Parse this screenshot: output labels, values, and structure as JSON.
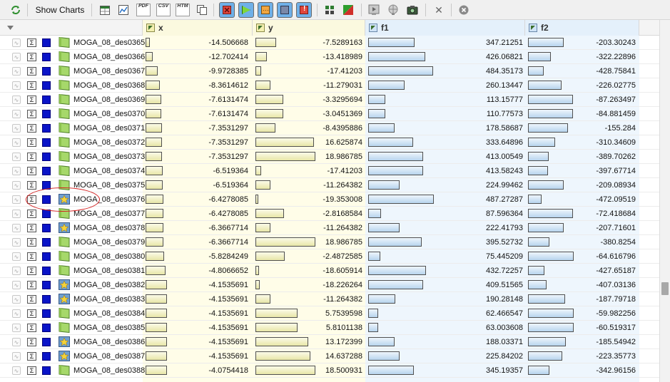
{
  "toolbar": {
    "show_charts_label": "Show Charts",
    "pdf_label": "PDF",
    "csv_label": "CSV",
    "htm_label": "HTM",
    "close_glyph": "✕"
  },
  "columns": {
    "x": "x",
    "y": "y",
    "f1": "f1",
    "f2": "f2"
  },
  "rows": [
    {
      "name": "MOGA_08_des0365",
      "x": "-14.506668",
      "xf": 0.12,
      "y": "-7.5289163",
      "yf": 0.35,
      "f1": "347.21251",
      "f1f": 0.71,
      "f2": "-203.30243",
      "f2f": 0.78
    },
    {
      "name": "MOGA_08_des0366",
      "x": "-12.702414",
      "xf": 0.2,
      "y": "-13.418989",
      "yf": 0.19,
      "f1": "426.06821",
      "f1f": 0.87,
      "f2": "-322.22896",
      "f2f": 0.5
    },
    {
      "name": "MOGA_08_des0367",
      "x": "-9.9728385",
      "xf": 0.32,
      "y": "-17.41203",
      "yf": 0.09,
      "f1": "484.35173",
      "f1f": 0.99,
      "f2": "-428.75841",
      "f2f": 0.35
    },
    {
      "name": "MOGA_08_des0368",
      "x": "-8.3614612",
      "xf": 0.39,
      "y": "-11.279031",
      "yf": 0.25,
      "f1": "260.13447",
      "f1f": 0.55,
      "f2": "-226.02775",
      "f2f": 0.74
    },
    {
      "name": "MOGA_08_des0369",
      "x": "-7.6131474",
      "xf": 0.42,
      "y": "-3.3295694",
      "yf": 0.47,
      "f1": "113.15777",
      "f1f": 0.26,
      "f2": "-87.263497",
      "f2f": 0.98
    },
    {
      "name": "MOGA_08_des0370",
      "x": "-7.6131474",
      "xf": 0.42,
      "y": "-3.0451369",
      "yf": 0.47,
      "f1": "110.77573",
      "f1f": 0.26,
      "f2": "-84.881459",
      "f2f": 0.98
    },
    {
      "name": "MOGA_08_des0371",
      "x": "-7.3531297",
      "xf": 0.44,
      "y": "-8.4395886",
      "yf": 0.33,
      "f1": "178.58687",
      "f1f": 0.4,
      "f2": "-155.284",
      "f2f": 0.88
    },
    {
      "name": "MOGA_08_des0372",
      "x": "-7.3531297",
      "xf": 0.44,
      "y": "16.625874",
      "yf": 0.98,
      "f1": "333.64896",
      "f1f": 0.69,
      "f2": "-310.34609",
      "f2f": 0.6
    },
    {
      "name": "MOGA_08_des0373",
      "x": "-7.3531297",
      "xf": 0.44,
      "y": "18.986785",
      "yf": 1.0,
      "f1": "413.00549",
      "f1f": 0.84,
      "f2": "-389.70262",
      "f2f": 0.45
    },
    {
      "name": "MOGA_08_des0374",
      "x": "-6.519364",
      "xf": 0.47,
      "y": "-17.41203",
      "yf": 0.09,
      "f1": "413.58243",
      "f1f": 0.84,
      "f2": "-397.67714",
      "f2f": 0.44
    },
    {
      "name": "MOGA_08_des0375",
      "x": "-6.519364",
      "xf": 0.47,
      "y": "-11.264382",
      "yf": 0.25,
      "f1": "224.99462",
      "f1f": 0.48,
      "f2": "-209.08934",
      "f2f": 0.78
    },
    {
      "name": "MOGA_08_des0376",
      "x": "-6.4278085",
      "xf": 0.48,
      "y": "-19.353008",
      "yf": 0.04,
      "f1": "487.27287",
      "f1f": 1.0,
      "f2": "-472.09519",
      "f2f": 0.29
    },
    {
      "name": "MOGA_08_des0377",
      "x": "-6.4278085",
      "xf": 0.48,
      "y": "-2.8168584",
      "yf": 0.48,
      "f1": "87.596364",
      "f1f": 0.2,
      "f2": "-72.418684",
      "f2f": 0.99
    },
    {
      "name": "MOGA_08_des0378",
      "x": "-6.3667714",
      "xf": 0.48,
      "y": "-11.264382",
      "yf": 0.25,
      "f1": "222.41793",
      "f1f": 0.48,
      "f2": "-207.71601",
      "f2f": 0.78
    },
    {
      "name": "MOGA_08_des0379",
      "x": "-6.3667714",
      "xf": 0.48,
      "y": "18.986785",
      "yf": 1.0,
      "f1": "395.52732",
      "f1f": 0.81,
      "f2": "-380.8254",
      "f2f": 0.47
    },
    {
      "name": "MOGA_08_des0380",
      "x": "-5.8284249",
      "xf": 0.5,
      "y": "-2.4872585",
      "yf": 0.49,
      "f1": "75.445209",
      "f1f": 0.18,
      "f2": "-64.616796",
      "f2f": 1.0
    },
    {
      "name": "MOGA_08_des0381",
      "x": "-4.8066652",
      "xf": 0.54,
      "y": "-18.605914",
      "yf": 0.06,
      "f1": "432.72257",
      "f1f": 0.88,
      "f2": "-427.65187",
      "f2f": 0.36
    },
    {
      "name": "MOGA_08_des0382",
      "x": "-4.1535691",
      "xf": 0.58,
      "y": "-18.226264",
      "yf": 0.07,
      "f1": "409.51565",
      "f1f": 0.84,
      "f2": "-407.03136",
      "f2f": 0.4
    },
    {
      "name": "MOGA_08_des0383",
      "x": "-4.1535691",
      "xf": 0.58,
      "y": "-11.264382",
      "yf": 0.25,
      "f1": "190.28148",
      "f1f": 0.41,
      "f2": "-187.79718",
      "f2f": 0.82
    },
    {
      "name": "MOGA_08_des0384",
      "x": "-4.1535691",
      "xf": 0.58,
      "y": "5.7539598",
      "yf": 0.7,
      "f1": "62.466547",
      "f1f": 0.15,
      "f2": "-59.982256",
      "f2f": 1.0
    },
    {
      "name": "MOGA_08_des0385",
      "x": "-4.1535691",
      "xf": 0.58,
      "y": "5.8101138",
      "yf": 0.7,
      "f1": "63.003608",
      "f1f": 0.15,
      "f2": "-60.519317",
      "f2f": 1.0
    },
    {
      "name": "MOGA_08_des0386",
      "x": "-4.1535691",
      "xf": 0.58,
      "y": "13.172399",
      "yf": 0.88,
      "f1": "188.03371",
      "f1f": 0.4,
      "f2": "-185.54942",
      "f2f": 0.83
    },
    {
      "name": "MOGA_08_des0387",
      "x": "-4.1535691",
      "xf": 0.58,
      "y": "14.637288",
      "yf": 0.92,
      "f1": "225.84202",
      "f1f": 0.48,
      "f2": "-223.35773",
      "f2f": 0.75
    },
    {
      "name": "MOGA_08_des0388",
      "x": "-4.0754418",
      "xf": 0.58,
      "y": "18.500931",
      "yf": 1.0,
      "f1": "345.19357",
      "f1f": 0.7,
      "f2": "-342.96156",
      "f2f": 0.47
    }
  ],
  "starred_rows": [
    11,
    13,
    17,
    18,
    21,
    22
  ]
}
